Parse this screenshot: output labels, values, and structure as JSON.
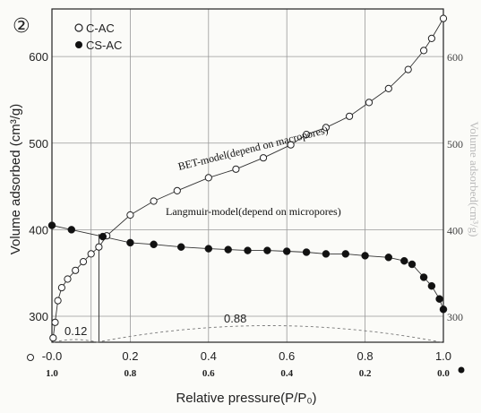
{
  "chart_data": {
    "type": "scatter",
    "panel_label": "②",
    "ylabel": "Volume adsorbed (cm³/g)",
    "ylabel_right": "Volume adsorbed(cm³/g)",
    "xlabel": "Relative pressure(P/P₀)",
    "xlim": [
      0.0,
      1.0
    ],
    "ylim": [
      270,
      655
    ],
    "grid": true,
    "legend_position": "top-left",
    "x_ticks": [
      "-0.0",
      "0.2",
      "0.4",
      "0.6",
      "0.8",
      "1.0"
    ],
    "x_ticks_reversed": [
      "1.0",
      "0.8",
      "0.6",
      "0.4",
      "0.2",
      "0.0"
    ],
    "y_ticks_left": [
      "300",
      "400",
      "500",
      "600"
    ],
    "y_ticks_right": [
      "300",
      "400",
      "500",
      "600"
    ],
    "annotations": {
      "bet_label": "BET-model(depend on macropores)",
      "langmuir_label": "Langmuir-model(depend on micropores)",
      "arc_left": "0.12",
      "arc_right": "0.88"
    },
    "series": [
      {
        "name": "C-AC",
        "marker": "open-circle",
        "x": [
          0.003,
          0.008,
          0.015,
          0.025,
          0.04,
          0.06,
          0.08,
          0.1,
          0.12,
          0.14,
          0.2,
          0.26,
          0.32,
          0.4,
          0.47,
          0.54,
          0.61,
          0.65,
          0.7,
          0.76,
          0.81,
          0.86,
          0.91,
          0.95,
          0.97,
          1.0
        ],
        "y": [
          275,
          293,
          318,
          333,
          343,
          353,
          363,
          372,
          380,
          393,
          417,
          433,
          445,
          460,
          470,
          483,
          498,
          510,
          518,
          531,
          547,
          563,
          585,
          607,
          621,
          644
        ]
      },
      {
        "name": "CS-AC",
        "marker": "filled-circle",
        "x": [
          0.0,
          0.05,
          0.13,
          0.2,
          0.26,
          0.33,
          0.4,
          0.45,
          0.5,
          0.55,
          0.6,
          0.65,
          0.7,
          0.75,
          0.8,
          0.86,
          0.9,
          0.92,
          0.95,
          0.97,
          0.99,
          1.0
        ],
        "y": [
          405,
          400,
          392,
          385,
          383,
          380,
          378,
          377,
          376,
          376,
          375,
          374,
          372,
          372,
          370,
          368,
          364,
          360,
          345,
          335,
          320,
          308
        ]
      }
    ]
  }
}
